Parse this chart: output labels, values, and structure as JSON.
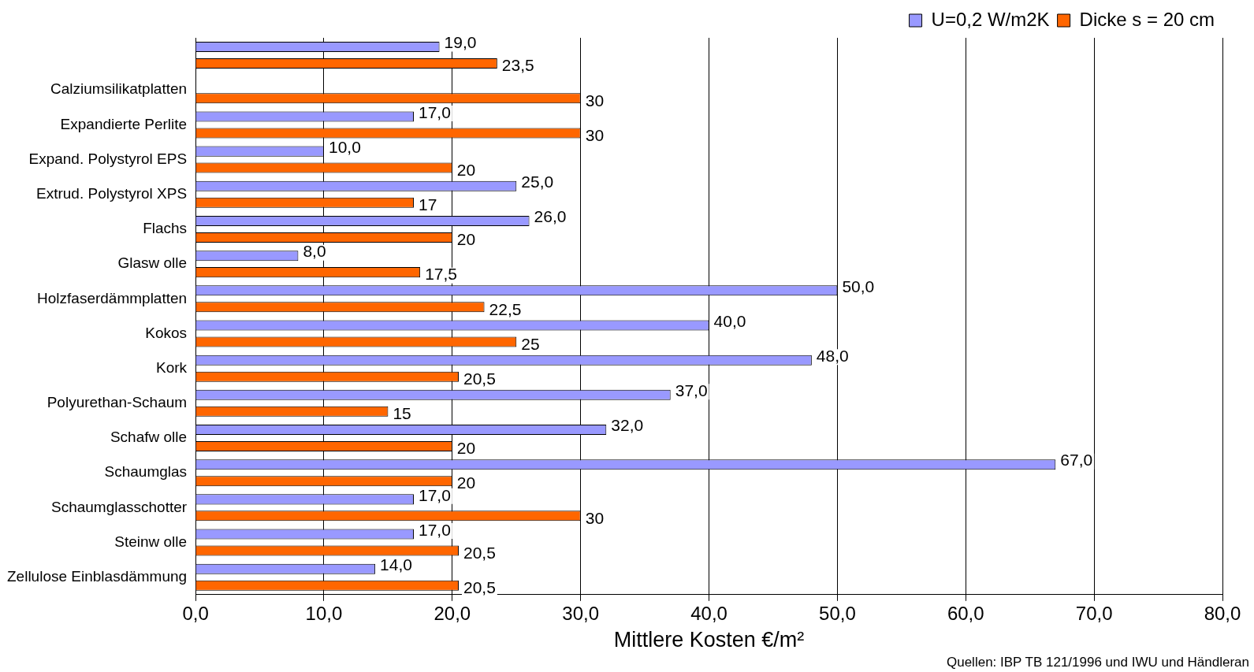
{
  "chart_data": {
    "type": "bar",
    "orientation": "horizontal",
    "xlabel": "Mittlere Kosten €/m²",
    "categories": [
      null,
      "Calziumsilikatplatten",
      "Expandierte Perlite",
      "Expand. Polystyrol EPS",
      "Extrud. Polystyrol XPS",
      "Flachs",
      "Glasw olle",
      "Holzfaserdämmplatten",
      "Kokos",
      "Kork",
      "Polyurethan-Schaum",
      "Schafw olle",
      "Schaumglas",
      "Schaumglasschotter",
      "Steinw olle",
      "Zellulose Einblasdämmung"
    ],
    "series": [
      {
        "name": "U=0,2 W/m2K",
        "color": "#9999ff",
        "values": [
          19,
          null,
          17,
          10,
          25,
          26,
          8,
          50,
          40,
          48,
          37,
          32,
          67,
          17,
          17,
          14
        ],
        "value_labels": [
          "19,0",
          null,
          "17,0",
          "10,0",
          "25,0",
          "26,0",
          "8,0",
          "50,0",
          "40,0",
          "48,0",
          "37,0",
          "32,0",
          "67,0",
          "17,0",
          "17,0",
          "14,0"
        ]
      },
      {
        "name": "Dicke s = 20 cm",
        "color": "#ff6600",
        "values": [
          23.5,
          30,
          30,
          20,
          17,
          20,
          17.5,
          22.5,
          25,
          20.5,
          15,
          20,
          20,
          30,
          20.5,
          20.5
        ],
        "value_labels": [
          "23,5",
          "30",
          "30",
          "20",
          "17",
          "20",
          "17,5",
          "22,5",
          "25",
          "20,5",
          "15",
          "20",
          "20",
          "30",
          "20,5",
          "20,5"
        ]
      }
    ],
    "xlim": [
      0,
      80
    ],
    "xticks": [
      {
        "value": 0,
        "label": "0,0"
      },
      {
        "value": 10,
        "label": "10,0"
      },
      {
        "value": 20,
        "label": "20,0"
      },
      {
        "value": 30,
        "label": "30,0"
      },
      {
        "value": 40,
        "label": "40,0"
      },
      {
        "value": 50,
        "label": "50,0"
      },
      {
        "value": 60,
        "label": "60,0"
      },
      {
        "value": 70,
        "label": "70,0"
      },
      {
        "value": 80,
        "label": "80,0"
      }
    ],
    "grid": "x",
    "legend": "top right",
    "annotations": [
      "Quellen: IBP TB 121/1996 und IWU und Händleran"
    ]
  }
}
